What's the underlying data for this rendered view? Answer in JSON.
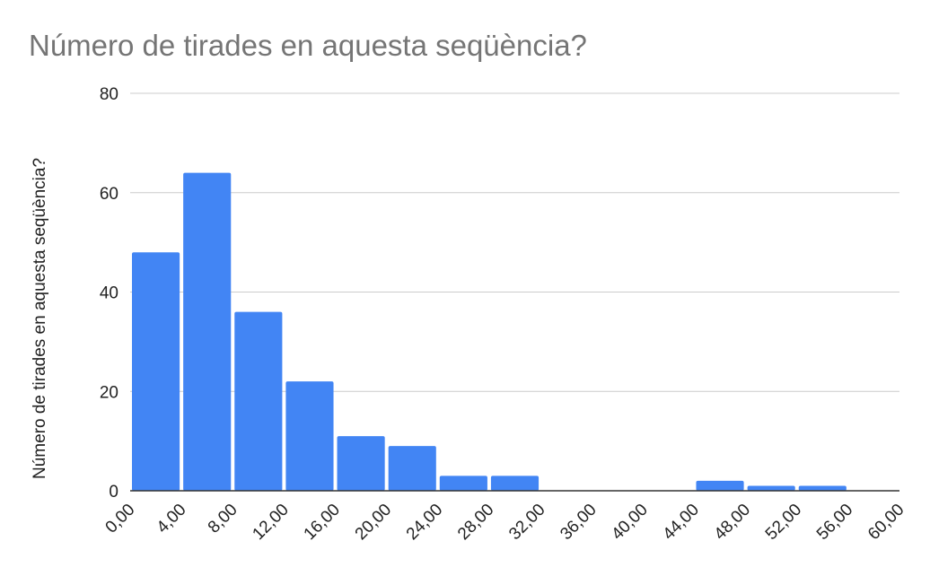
{
  "chart_data": {
    "type": "histogram",
    "title": "Número de tirades en aquesta seqüència?",
    "y_label": "Número de tirades en aquesta seqüència?",
    "bins": [
      0,
      4,
      8,
      12,
      16,
      20,
      24,
      28,
      32,
      36,
      40,
      44,
      48,
      52,
      56,
      60
    ],
    "values": [
      48,
      64,
      36,
      22,
      11,
      9,
      3,
      3,
      0,
      0,
      0,
      2,
      1,
      1,
      0
    ],
    "color": "#4285f4",
    "xlim": [
      0,
      60
    ],
    "xticks": [
      {
        "value": 0,
        "label": "0,00"
      },
      {
        "value": 4,
        "label": "4,00"
      },
      {
        "value": 8,
        "label": "8,00"
      },
      {
        "value": 12,
        "label": "12,00"
      },
      {
        "value": 16,
        "label": "16,00"
      },
      {
        "value": 20,
        "label": "20,00"
      },
      {
        "value": 24,
        "label": "24,00"
      },
      {
        "value": 28,
        "label": "28,00"
      },
      {
        "value": 32,
        "label": "32,00"
      },
      {
        "value": 36,
        "label": "36,00"
      },
      {
        "value": 40,
        "label": "40,00"
      },
      {
        "value": 44,
        "label": "44,00"
      },
      {
        "value": 48,
        "label": "48,00"
      },
      {
        "value": 52,
        "label": "52,00"
      },
      {
        "value": 56,
        "label": "56,00"
      },
      {
        "value": 60,
        "label": "60,00"
      }
    ],
    "ylim": [
      0,
      80
    ],
    "yticks": [
      0,
      20,
      40,
      60,
      80
    ],
    "grid": true
  }
}
